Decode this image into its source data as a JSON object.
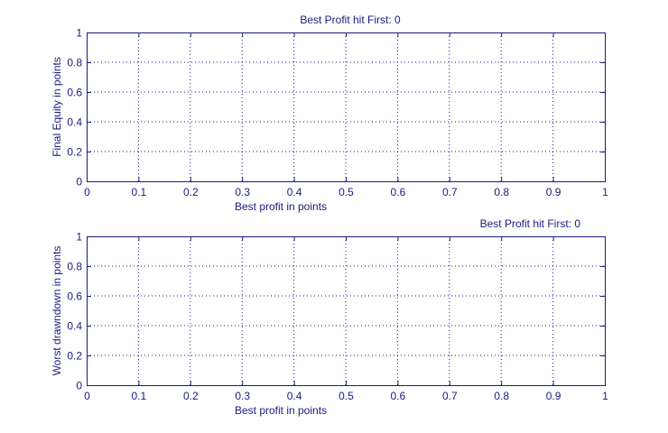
{
  "colors": {
    "axis": "#1a1a80",
    "grid": "#1a1a80",
    "background": "#ffffff"
  },
  "chart_data": [
    {
      "type": "scatter",
      "title": "Best Profit hit First: 0",
      "title_align": "center",
      "xlabel": "Best profit in points",
      "ylabel": "Final Equity in points",
      "xlim": [
        0,
        1
      ],
      "ylim": [
        0,
        1
      ],
      "xticks": [
        "0",
        "0.1",
        "0.2",
        "0.3",
        "0.4",
        "0.5",
        "0.6",
        "0.7",
        "0.8",
        "0.9",
        "1"
      ],
      "yticks": [
        "0",
        "0.2",
        "0.4",
        "0.6",
        "0.8",
        "1"
      ],
      "grid": true,
      "series": []
    },
    {
      "type": "scatter",
      "title": "Best Profit hit First: 0",
      "title_align": "right",
      "xlabel": "Best profit in points",
      "ylabel": "Worst drawndown in points",
      "xlim": [
        0,
        1
      ],
      "ylim": [
        0,
        1
      ],
      "xticks": [
        "0",
        "0.1",
        "0.2",
        "0.3",
        "0.4",
        "0.5",
        "0.6",
        "0.7",
        "0.8",
        "0.9",
        "1"
      ],
      "yticks": [
        "0",
        "0.2",
        "0.4",
        "0.6",
        "0.8",
        "1"
      ],
      "grid": true,
      "series": []
    }
  ]
}
